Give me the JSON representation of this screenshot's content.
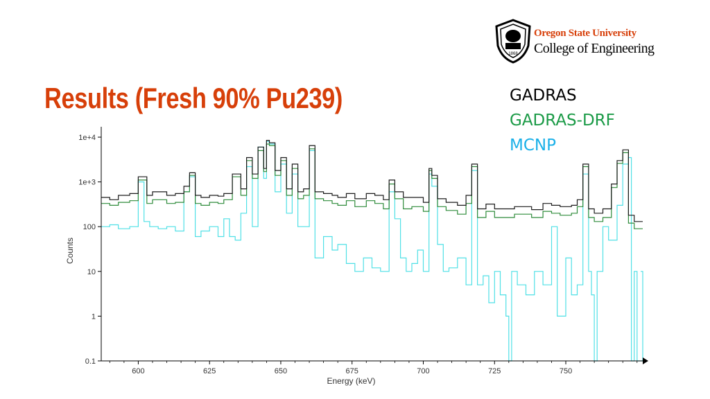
{
  "slide": {
    "title": "Results (Fresh 90% Pu239)"
  },
  "logo": {
    "university": "Oregon State University",
    "college": "College of Engineering",
    "seal_text": "1868"
  },
  "legend": [
    {
      "label": "GADRAS",
      "color": "#000000"
    },
    {
      "label": "GADRAS-DRF",
      "color": "#1a9a46"
    },
    {
      "label": "MCNP",
      "color": "#1ab0e8"
    }
  ],
  "chart_data": {
    "type": "line",
    "title": "",
    "xlabel": "Energy (keV)",
    "ylabel": "Counts",
    "xlim": [
      587,
      777
    ],
    "ylim": [
      0.1,
      10000
    ],
    "yscale": "log",
    "xticks": [
      600,
      625,
      650,
      675,
      700,
      725,
      750
    ],
    "yticks": [
      {
        "value": 0.1,
        "label": "0.1"
      },
      {
        "value": 1,
        "label": "1"
      },
      {
        "value": 10,
        "label": "10"
      },
      {
        "value": 100,
        "label": "100"
      },
      {
        "value": 1000,
        "label": "1e+3"
      },
      {
        "value": 10000,
        "label": "1e+4"
      }
    ],
    "grid": false,
    "legend_position": "top-right",
    "series": [
      {
        "name": "GADRAS",
        "color": "#1a1a1a",
        "x": [
          587,
          590,
          593,
          597,
          600,
          603,
          605,
          610,
          613,
          616,
          618,
          620,
          622,
          625,
          628,
          630,
          633,
          636,
          638,
          640,
          642,
          644,
          645,
          646,
          648,
          650,
          652,
          654,
          656,
          658,
          660,
          662,
          665,
          668,
          670,
          673,
          676,
          680,
          683,
          686,
          688,
          690,
          693,
          696,
          700,
          702,
          703,
          705,
          708,
          712,
          715,
          717,
          719,
          722,
          725,
          728,
          732,
          735,
          738,
          742,
          745,
          748,
          750,
          752,
          754,
          756,
          758,
          760,
          763,
          766,
          768,
          770,
          772,
          774,
          777
        ],
        "values": [
          450,
          400,
          500,
          550,
          1300,
          500,
          600,
          500,
          550,
          800,
          1600,
          500,
          450,
          500,
          480,
          550,
          1500,
          700,
          3500,
          1500,
          6000,
          2000,
          8500,
          7500,
          1800,
          3500,
          700,
          2500,
          600,
          700,
          6500,
          600,
          550,
          500,
          450,
          550,
          420,
          550,
          500,
          400,
          1100,
          600,
          450,
          450,
          350,
          2000,
          1400,
          420,
          350,
          300,
          500,
          2500,
          250,
          320,
          250,
          250,
          280,
          280,
          240,
          330,
          300,
          280,
          280,
          300,
          400,
          2500,
          250,
          200,
          250,
          900,
          3000,
          5200,
          180,
          130,
          130
        ]
      },
      {
        "name": "GADRAS-DRF",
        "color": "#2e8b3a",
        "x": [
          587,
          590,
          593,
          597,
          600,
          603,
          605,
          610,
          613,
          616,
          618,
          620,
          622,
          625,
          628,
          630,
          633,
          636,
          638,
          640,
          642,
          644,
          645,
          646,
          648,
          650,
          652,
          654,
          656,
          658,
          660,
          662,
          665,
          668,
          670,
          673,
          676,
          680,
          683,
          686,
          688,
          690,
          693,
          696,
          700,
          702,
          703,
          705,
          708,
          712,
          715,
          717,
          719,
          722,
          725,
          728,
          732,
          735,
          738,
          742,
          745,
          748,
          750,
          752,
          754,
          756,
          758,
          760,
          763,
          766,
          768,
          770,
          772,
          774,
          777
        ],
        "values": [
          330,
          300,
          350,
          380,
          1100,
          330,
          400,
          330,
          350,
          600,
          1400,
          330,
          300,
          350,
          330,
          400,
          1300,
          500,
          3000,
          1200,
          5000,
          1700,
          7000,
          6500,
          1400,
          3000,
          500,
          2000,
          420,
          500,
          5500,
          420,
          380,
          330,
          300,
          380,
          280,
          380,
          330,
          250,
          900,
          420,
          250,
          280,
          220,
          1800,
          1200,
          280,
          230,
          190,
          330,
          2200,
          160,
          220,
          160,
          160,
          190,
          190,
          160,
          220,
          200,
          180,
          180,
          200,
          280,
          2200,
          160,
          130,
          160,
          750,
          2600,
          4500,
          120,
          90,
          90
        ]
      },
      {
        "name": "MCNP",
        "color": "#4fe0e6",
        "x": [
          587,
          590,
          593,
          597,
          600,
          602,
          604,
          607,
          610,
          613,
          616,
          618,
          620,
          622,
          625,
          628,
          630,
          632,
          634,
          636,
          638,
          640,
          642,
          644,
          645,
          646,
          648,
          650,
          652,
          654,
          656,
          658,
          660,
          662,
          665,
          668,
          670,
          673,
          676,
          679,
          682,
          685,
          688,
          690,
          692,
          694,
          696,
          698,
          700,
          702,
          703,
          705,
          707,
          709,
          712,
          715,
          717,
          719,
          721,
          723,
          725,
          727,
          729,
          730,
          731,
          733,
          736,
          739,
          742,
          745,
          747,
          750,
          752,
          754,
          756,
          758,
          759,
          760,
          761,
          763,
          765,
          768,
          770,
          772,
          773,
          774,
          775,
          777
        ],
        "values": [
          100,
          110,
          90,
          100,
          1000,
          130,
          100,
          90,
          100,
          80,
          600,
          1300,
          60,
          80,
          100,
          60,
          150,
          60,
          50,
          200,
          2200,
          100,
          6000,
          1200,
          8000,
          7000,
          600,
          2500,
          200,
          1500,
          100,
          100,
          5000,
          20,
          60,
          30,
          40,
          15,
          10,
          20,
          12,
          10,
          600,
          150,
          20,
          10,
          15,
          30,
          10,
          1500,
          800,
          40,
          10,
          12,
          20,
          5,
          1800,
          5,
          8,
          2,
          10,
          3,
          1,
          0.1,
          10,
          5,
          3,
          10,
          5,
          100,
          1,
          20,
          3,
          5,
          1500,
          10,
          3,
          0.1,
          10,
          100,
          50,
          300,
          2500,
          3500,
          0.1,
          10,
          0.1,
          10
        ]
      }
    ]
  }
}
